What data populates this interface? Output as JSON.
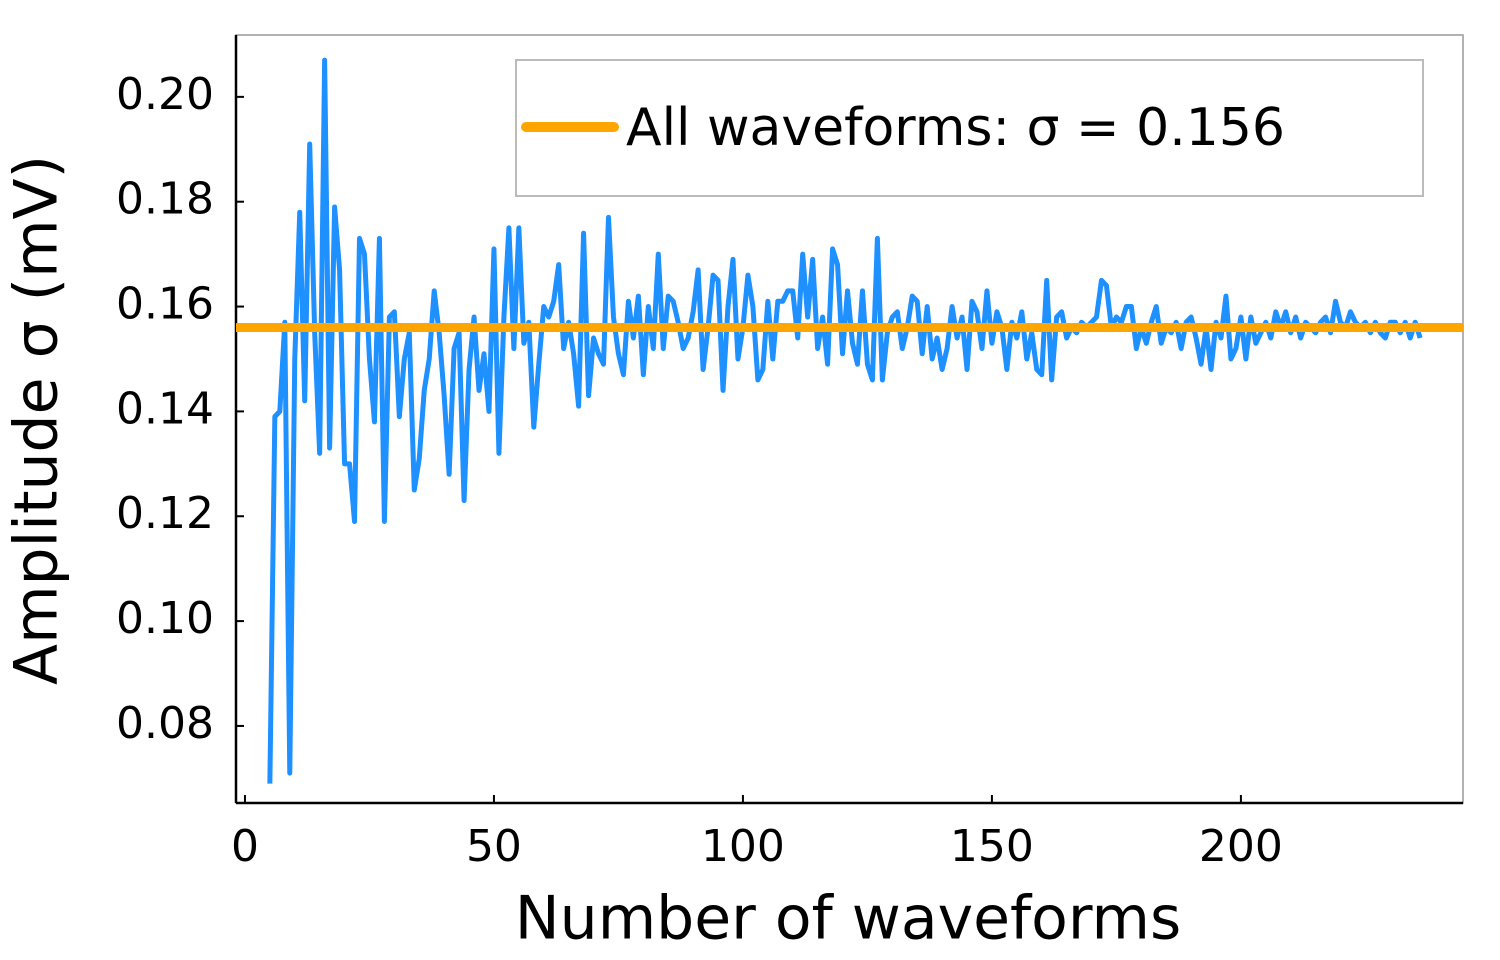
{
  "chart_data": {
    "type": "line",
    "xlabel": "Number of waveforms",
    "ylabel": "Amplitude σ (mV)",
    "xlim": [
      -1.8,
      244.6
    ],
    "ylim": [
      0.0653,
      0.2118
    ],
    "xticks": [
      0,
      50,
      100,
      150,
      200
    ],
    "yticks": [
      0.08,
      {
        "value": 0.1,
        "label": "0.10"
      },
      0.12,
      0.14,
      0.16,
      0.18,
      {
        "value": 0.2,
        "label": "0.20"
      }
    ],
    "grid": false,
    "legend": "top-right",
    "x": [
      5,
      6,
      7,
      8,
      9,
      10,
      11,
      12,
      13,
      14,
      15,
      16,
      17,
      18,
      19,
      20,
      21,
      22,
      23,
      24,
      25,
      26,
      27,
      28,
      29,
      30,
      31,
      32,
      33,
      34,
      35,
      36,
      37,
      38,
      39,
      40,
      41,
      42,
      43,
      44,
      45,
      46,
      47,
      48,
      49,
      50,
      51,
      52,
      53,
      54,
      55,
      56,
      57,
      58,
      59,
      60,
      61,
      62,
      63,
      64,
      65,
      66,
      67,
      68,
      69,
      70,
      71,
      72,
      73,
      74,
      75,
      76,
      77,
      78,
      79,
      80,
      81,
      82,
      83,
      84,
      85,
      86,
      87,
      88,
      89,
      90,
      91,
      92,
      93,
      94,
      95,
      96,
      97,
      98,
      99,
      100,
      101,
      102,
      103,
      104,
      105,
      106,
      107,
      108,
      109,
      110,
      111,
      112,
      113,
      114,
      115,
      116,
      117,
      118,
      119,
      120,
      121,
      122,
      123,
      124,
      125,
      126,
      127,
      128,
      129,
      130,
      131,
      132,
      133,
      134,
      135,
      136,
      137,
      138,
      139,
      140,
      141,
      142,
      143,
      144,
      145,
      146,
      147,
      148,
      149,
      150,
      151,
      152,
      153,
      154,
      155,
      156,
      157,
      158,
      159,
      160,
      161,
      162,
      163,
      164,
      165,
      166,
      167,
      168,
      169,
      170,
      171,
      172,
      173,
      174,
      175,
      176,
      177,
      178,
      179,
      180,
      181,
      182,
      183,
      184,
      185,
      186,
      187,
      188,
      189,
      190,
      191,
      192,
      193,
      194,
      195,
      196,
      197,
      198,
      199,
      200,
      201,
      202,
      203,
      204,
      205,
      206,
      207,
      208,
      209,
      210,
      211,
      212,
      213,
      214,
      215,
      216,
      217,
      218,
      219,
      220,
      221,
      222,
      223,
      224,
      225,
      226,
      227,
      228,
      229,
      230,
      231,
      232,
      233,
      234,
      235,
      236
    ],
    "series": [
      {
        "color": "#1e90ff",
        "values": [
          0.069,
          0.139,
          0.14,
          0.157,
          0.071,
          0.15,
          0.178,
          0.142,
          0.191,
          0.155,
          0.132,
          0.207,
          0.133,
          0.179,
          0.167,
          0.13,
          0.13,
          0.119,
          0.173,
          0.17,
          0.15,
          0.138,
          0.173,
          0.119,
          0.158,
          0.159,
          0.139,
          0.15,
          0.155,
          0.125,
          0.131,
          0.144,
          0.15,
          0.163,
          0.155,
          0.143,
          0.128,
          0.152,
          0.155,
          0.123,
          0.148,
          0.158,
          0.144,
          0.151,
          0.14,
          0.171,
          0.132,
          0.158,
          0.175,
          0.152,
          0.175,
          0.153,
          0.157,
          0.137,
          0.149,
          0.16,
          0.158,
          0.161,
          0.168,
          0.152,
          0.157,
          0.151,
          0.141,
          0.174,
          0.143,
          0.154,
          0.151,
          0.149,
          0.177,
          0.158,
          0.151,
          0.147,
          0.161,
          0.154,
          0.162,
          0.147,
          0.16,
          0.152,
          0.17,
          0.152,
          0.162,
          0.161,
          0.157,
          0.152,
          0.154,
          0.159,
          0.167,
          0.148,
          0.156,
          0.166,
          0.165,
          0.144,
          0.16,
          0.169,
          0.15,
          0.156,
          0.166,
          0.16,
          0.146,
          0.148,
          0.161,
          0.15,
          0.161,
          0.161,
          0.163,
          0.163,
          0.154,
          0.17,
          0.158,
          0.169,
          0.152,
          0.158,
          0.149,
          0.171,
          0.168,
          0.151,
          0.163,
          0.153,
          0.149,
          0.163,
          0.149,
          0.146,
          0.173,
          0.146,
          0.155,
          0.158,
          0.159,
          0.152,
          0.156,
          0.162,
          0.161,
          0.151,
          0.16,
          0.15,
          0.154,
          0.148,
          0.152,
          0.16,
          0.154,
          0.158,
          0.148,
          0.161,
          0.159,
          0.152,
          0.163,
          0.153,
          0.159,
          0.156,
          0.148,
          0.157,
          0.154,
          0.159,
          0.15,
          0.155,
          0.148,
          0.147,
          0.165,
          0.146,
          0.158,
          0.159,
          0.154,
          0.156,
          0.155,
          0.157,
          0.156,
          0.157,
          0.158,
          0.165,
          0.164,
          0.156,
          0.158,
          0.157,
          0.16,
          0.16,
          0.152,
          0.156,
          0.153,
          0.157,
          0.16,
          0.153,
          0.156,
          0.155,
          0.157,
          0.152,
          0.157,
          0.158,
          0.154,
          0.149,
          0.156,
          0.148,
          0.157,
          0.154,
          0.162,
          0.15,
          0.152,
          0.158,
          0.15,
          0.158,
          0.153,
          0.155,
          0.157,
          0.154,
          0.159,
          0.156,
          0.159,
          0.155,
          0.158,
          0.154,
          0.157,
          0.156,
          0.155,
          0.157,
          0.158,
          0.155,
          0.161,
          0.157,
          0.156,
          0.159,
          0.157,
          0.156,
          0.157,
          0.155,
          0.157,
          0.155,
          0.154,
          0.157,
          0.157,
          0.155,
          0.157,
          0.154,
          0.157,
          0.154
        ]
      },
      {
        "name": "All waveforms: σ = 0.156",
        "color": "#ffa500",
        "value": 0.156
      }
    ]
  }
}
